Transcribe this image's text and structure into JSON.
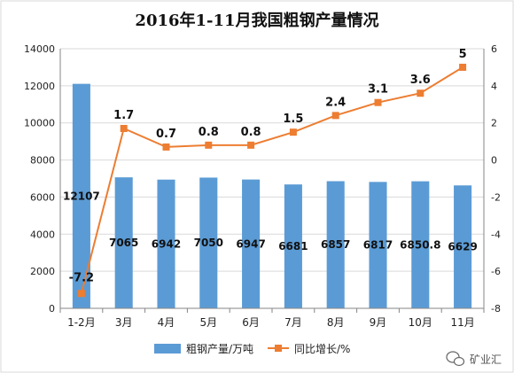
{
  "chart_data": {
    "type": "bar",
    "title": "2016年1-11月我国粗钢产量情况",
    "categories": [
      "1-2月",
      "3月",
      "4月",
      "5月",
      "6月",
      "7月",
      "8月",
      "9月",
      "10月",
      "11月"
    ],
    "series": [
      {
        "name": "粗钢产量/万吨",
        "type": "bar",
        "axis": "left",
        "color": "#5b9bd5",
        "values": [
          12107,
          7065,
          6942,
          7050,
          6947,
          6681,
          6857,
          6817,
          6850.8,
          6629
        ],
        "labels": [
          "12107",
          "7065",
          "6942",
          "7050",
          "6947",
          "6681",
          "6857",
          "6817",
          "6850.8",
          "6629"
        ]
      },
      {
        "name": "同比增长/%",
        "type": "line",
        "axis": "right",
        "color": "#ed7d31",
        "values": [
          -7.2,
          1.7,
          0.7,
          0.8,
          0.8,
          1.5,
          2.4,
          3.1,
          3.6,
          5
        ],
        "labels": [
          "-7.2",
          "1.7",
          "0.7",
          "0.8",
          "0.8",
          "1.5",
          "2.4",
          "3.1",
          "3.6",
          "5"
        ]
      }
    ],
    "ylim_left": [
      0,
      14000
    ],
    "yticks_left": [
      0,
      2000,
      4000,
      6000,
      8000,
      10000,
      12000,
      14000
    ],
    "ylim_right": [
      -8,
      6
    ],
    "yticks_right": [
      -8,
      -6,
      -4,
      -2,
      0,
      2,
      4,
      6
    ],
    "grid": true,
    "legend": "bottom"
  },
  "watermark": {
    "text": "矿业汇",
    "icon": "wechat-icon"
  }
}
